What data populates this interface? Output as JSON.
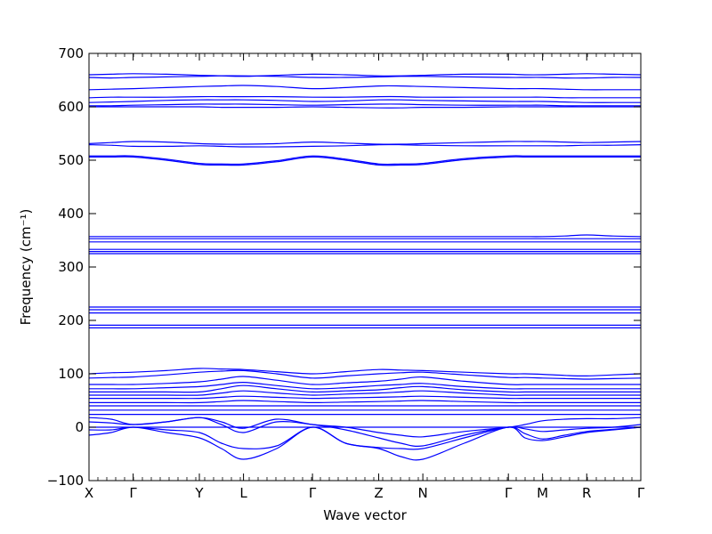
{
  "chart_data": {
    "type": "line",
    "xlabel": "Wave vector",
    "ylabel": "Frequency (cm⁻¹)",
    "ylim": [
      -100,
      700
    ],
    "yticks": [
      -100,
      0,
      100,
      200,
      300,
      400,
      500,
      600,
      700
    ],
    "grid": false,
    "legend": "none",
    "line_color": "#0000ff",
    "path_labels": [
      "X",
      "Γ",
      "Y",
      "L",
      "Γ",
      "Z",
      "N",
      "Γ",
      "M",
      "R",
      "Γ"
    ],
    "path_positions": [
      0,
      0.08,
      0.2,
      0.28,
      0.405,
      0.525,
      0.605,
      0.76,
      0.822,
      0.902,
      1.0
    ],
    "zero_line": 0,
    "x": [
      0,
      0.04,
      0.08,
      0.14,
      0.2,
      0.24,
      0.28,
      0.34,
      0.405,
      0.465,
      0.525,
      0.565,
      0.605,
      0.68,
      0.76,
      0.79,
      0.822,
      0.862,
      0.902,
      0.95,
      1.0
    ],
    "series": [
      {
        "values": [
          660,
          661,
          662,
          661,
          659,
          658,
          657,
          659,
          661,
          660,
          658,
          658,
          659,
          661,
          661,
          660,
          660,
          661,
          662,
          661,
          660
        ]
      },
      {
        "values": [
          655,
          654,
          655,
          656,
          657,
          658,
          658,
          657,
          655,
          655,
          656,
          657,
          657,
          656,
          655,
          655,
          655,
          654,
          654,
          655,
          655
        ]
      },
      {
        "values": [
          632,
          633,
          634,
          636,
          638,
          639,
          640,
          638,
          634,
          636,
          639,
          639,
          638,
          636,
          634,
          634,
          634,
          633,
          632,
          632,
          632
        ]
      },
      {
        "values": [
          617,
          618,
          618,
          618,
          619,
          619,
          619,
          619,
          618,
          618,
          619,
          619,
          618,
          618,
          618,
          618,
          618,
          617,
          617,
          617,
          617
        ]
      },
      {
        "values": [
          608,
          609,
          610,
          612,
          613,
          613,
          613,
          612,
          610,
          611,
          613,
          613,
          612,
          611,
          610,
          610,
          610,
          609,
          608,
          608,
          608
        ]
      },
      {
        "values": [
          602,
          602,
          603,
          604,
          605,
          605,
          605,
          604,
          603,
          604,
          605,
          605,
          604,
          603,
          603,
          603,
          603,
          602,
          602,
          602,
          602
        ]
      },
      {
        "values": [
          600,
          600,
          600,
          600,
          600,
          599,
          599,
          599,
          600,
          599,
          598,
          598,
          599,
          599,
          600,
          600,
          600,
          600,
          600,
          600,
          600
        ]
      },
      {
        "values": [
          531,
          533,
          535,
          534,
          531,
          530,
          530,
          531,
          534,
          532,
          530,
          530,
          531,
          533,
          535,
          535,
          535,
          534,
          533,
          534,
          535
        ]
      },
      {
        "values": [
          529,
          528,
          526,
          526,
          527,
          526,
          525,
          525,
          526,
          527,
          529,
          529,
          528,
          527,
          527,
          527,
          527,
          527,
          528,
          528,
          529
        ]
      },
      {
        "values": [
          508,
          508,
          508,
          502,
          494,
          493,
          493,
          499,
          508,
          502,
          493,
          493,
          494,
          503,
          508,
          508,
          508,
          508,
          508,
          508,
          508
        ]
      },
      {
        "values": [
          506,
          506,
          506,
          500,
          492,
          491,
          491,
          497,
          506,
          500,
          491,
          491,
          492,
          501,
          506,
          506,
          506,
          506,
          506,
          506,
          506
        ]
      },
      {
        "values": [
          357,
          357,
          357,
          357,
          357,
          357,
          357,
          357,
          357,
          357,
          357,
          357,
          357,
          357,
          357,
          357,
          357,
          358,
          360,
          358,
          357
        ]
      },
      {
        "values": [
          353,
          353,
          353,
          353,
          353,
          353,
          353,
          353,
          353,
          353,
          353,
          353,
          353,
          353,
          353,
          353,
          353,
          353,
          353,
          353,
          353
        ]
      },
      {
        "values": [
          347,
          347,
          347,
          347,
          347,
          347,
          347,
          347,
          347,
          347,
          347,
          347,
          347,
          347,
          347,
          347,
          347,
          347,
          347,
          347,
          347
        ]
      },
      {
        "values": [
          333,
          333,
          333,
          333,
          333,
          333,
          333,
          333,
          333,
          333,
          333,
          333,
          333,
          333,
          333,
          333,
          333,
          333,
          333,
          333,
          333
        ]
      },
      {
        "values": [
          329,
          329,
          329,
          329,
          329,
          329,
          329,
          329,
          329,
          329,
          329,
          329,
          329,
          329,
          329,
          329,
          329,
          329,
          329,
          329,
          329
        ]
      },
      {
        "values": [
          325,
          325,
          325,
          325,
          325,
          325,
          325,
          325,
          325,
          325,
          325,
          325,
          325,
          325,
          325,
          325,
          325,
          325,
          325,
          325,
          325
        ]
      },
      {
        "values": [
          225,
          225,
          225,
          225,
          225,
          225,
          225,
          225,
          225,
          225,
          225,
          225,
          225,
          225,
          225,
          225,
          225,
          225,
          225,
          225,
          225
        ]
      },
      {
        "values": [
          220,
          220,
          220,
          220,
          220,
          220,
          220,
          220,
          220,
          220,
          220,
          220,
          220,
          220,
          220,
          220,
          220,
          220,
          220,
          220,
          220
        ]
      },
      {
        "values": [
          214,
          214,
          214,
          214,
          214,
          214,
          214,
          214,
          214,
          214,
          214,
          214,
          214,
          214,
          214,
          214,
          214,
          214,
          214,
          214,
          214
        ]
      },
      {
        "values": [
          191,
          191,
          191,
          191,
          191,
          191,
          191,
          191,
          191,
          191,
          191,
          191,
          191,
          191,
          191,
          191,
          191,
          191,
          191,
          191,
          191
        ]
      },
      {
        "values": [
          186,
          186,
          186,
          186,
          186,
          186,
          186,
          186,
          186,
          186,
          186,
          186,
          186,
          186,
          186,
          186,
          186,
          186,
          186,
          186,
          186
        ]
      },
      {
        "values": [
          100,
          102,
          103,
          106,
          110,
          109,
          108,
          104,
          100,
          104,
          108,
          107,
          106,
          103,
          100,
          100,
          99,
          97,
          96,
          98,
          100
        ]
      },
      {
        "values": [
          92,
          93,
          94,
          98,
          103,
          105,
          106,
          100,
          92,
          96,
          100,
          102,
          103,
          98,
          93,
          93,
          92,
          91,
          90,
          91,
          92
        ]
      },
      {
        "values": [
          80,
          80,
          80,
          82,
          85,
          90,
          95,
          88,
          80,
          83,
          86,
          90,
          94,
          86,
          80,
          80,
          80,
          80,
          80,
          80,
          80
        ]
      },
      {
        "values": [
          72,
          72,
          72,
          74,
          76,
          80,
          84,
          78,
          72,
          74,
          78,
          80,
          82,
          76,
          72,
          72,
          72,
          72,
          72,
          72,
          72
        ]
      },
      {
        "values": [
          66,
          66,
          66,
          66,
          66,
          72,
          78,
          72,
          66,
          68,
          70,
          74,
          76,
          70,
          66,
          66,
          66,
          66,
          66,
          66,
          66
        ]
      },
      {
        "values": [
          60,
          60,
          60,
          60,
          60,
          64,
          68,
          64,
          60,
          62,
          64,
          66,
          68,
          64,
          60,
          60,
          60,
          60,
          60,
          60,
          60
        ]
      },
      {
        "values": [
          54,
          54,
          54,
          54,
          54,
          56,
          58,
          56,
          54,
          55,
          56,
          57,
          58,
          56,
          54,
          54,
          54,
          54,
          54,
          54,
          54
        ]
      },
      {
        "values": [
          46,
          46,
          46,
          46,
          46,
          48,
          50,
          48,
          46,
          47,
          48,
          49,
          50,
          48,
          46,
          46,
          46,
          46,
          46,
          46,
          46
        ]
      },
      {
        "values": [
          40,
          40,
          40,
          40,
          40,
          40,
          40,
          40,
          40,
          40,
          40,
          40,
          40,
          40,
          40,
          40,
          40,
          40,
          40,
          40,
          40
        ]
      },
      {
        "values": [
          32,
          32,
          32,
          32,
          32,
          32,
          32,
          32,
          32,
          32,
          32,
          32,
          32,
          32,
          32,
          32,
          32,
          32,
          32,
          32,
          32
        ]
      },
      {
        "values": [
          24,
          24,
          24,
          24,
          24,
          24,
          24,
          24,
          24,
          24,
          24,
          24,
          24,
          24,
          24,
          24,
          24,
          24,
          24,
          24,
          24
        ]
      },
      {
        "values": [
          18,
          15,
          5,
          10,
          18,
          10,
          -2,
          15,
          5,
          0,
          -10,
          -15,
          -18,
          -8,
          0,
          5,
          12,
          15,
          16,
          16,
          18
        ]
      },
      {
        "values": [
          10,
          8,
          5,
          10,
          18,
          5,
          -10,
          10,
          5,
          -5,
          -20,
          -30,
          -35,
          -15,
          0,
          -3,
          -8,
          -5,
          -2,
          0,
          5
        ]
      },
      {
        "values": [
          0,
          0,
          0,
          0,
          0,
          0,
          0,
          0,
          0,
          0,
          0,
          0,
          0,
          0,
          0,
          0,
          0,
          0,
          0,
          0,
          0
        ]
      },
      {
        "values": [
          -5,
          -5,
          0,
          -5,
          -10,
          -30,
          -40,
          -35,
          0,
          -30,
          -38,
          -40,
          -40,
          -20,
          0,
          -12,
          -22,
          -15,
          -8,
          -4,
          0
        ]
      },
      {
        "values": [
          -15,
          -10,
          0,
          -10,
          -20,
          -40,
          -60,
          -40,
          0,
          -30,
          -40,
          -55,
          -60,
          -30,
          0,
          -20,
          -25,
          -18,
          -10,
          -5,
          0
        ]
      }
    ]
  }
}
